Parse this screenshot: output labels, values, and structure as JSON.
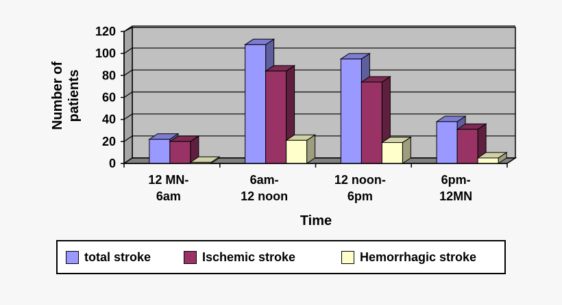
{
  "chart_data": {
    "type": "bar",
    "categories": [
      [
        "12 MN-",
        "6am"
      ],
      [
        "6am-",
        "12 noon"
      ],
      [
        "12 noon-",
        "6pm"
      ],
      [
        "6pm-",
        "12MN"
      ]
    ],
    "series": [
      {
        "name": "total stroke",
        "values": [
          22,
          108,
          95,
          38
        ],
        "color": "#9999ff"
      },
      {
        "name": "Ischemic stroke",
        "values": [
          20,
          84,
          74,
          31
        ],
        "color": "#993366"
      },
      {
        "name": "Hemorrhagic stroke",
        "values": [
          1,
          21,
          19,
          5
        ],
        "color": "#ffffcc"
      }
    ],
    "xlabel": "Time",
    "ylabel": [
      "Number of",
      "patients"
    ],
    "ylim": [
      0,
      120
    ],
    "yticks": [
      0,
      20,
      40,
      60,
      80,
      100,
      120
    ],
    "grid": true,
    "legend_position": "bottom"
  }
}
